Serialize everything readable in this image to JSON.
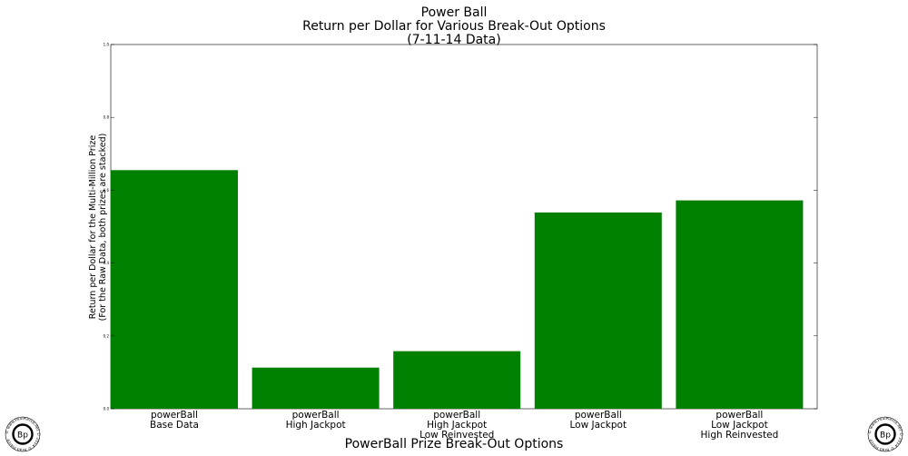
{
  "chart_data": {
    "type": "bar",
    "title": [
      "Power Ball",
      "Return per Dollar for Various Break-Out Options",
      "(7-11-14 Data)"
    ],
    "xlabel": "PowerBall Prize Break-Out Options",
    "ylabel": [
      "Return per Dollar for the Multi-Million Prize",
      "(For the Raw Data, both prizes are stacked)"
    ],
    "categories": [
      [
        "powerBall",
        "Base Data"
      ],
      [
        "powerBall",
        "High Jackpot"
      ],
      [
        "powerBall",
        "High Jackpot",
        "Low Reinvested"
      ],
      [
        "powerBall",
        "Low Jackpot"
      ],
      [
        "powerBall",
        "Low Jackpot",
        "High Reinvested"
      ]
    ],
    "values": [
      0.655,
      0.113,
      0.158,
      0.539,
      0.572
    ],
    "ylim": [
      0,
      1.0
    ],
    "yticks": [
      "0.0",
      "0.2",
      "0.4",
      "0.6",
      "0.8",
      "1.0"
    ],
    "bar_color": "#008000",
    "grid": false,
    "legend": "none"
  },
  "watermark": {
    "monogram": "Bp",
    "ring_text": "© www.PaulPierce.net © 2014 © Brad Pierce"
  }
}
